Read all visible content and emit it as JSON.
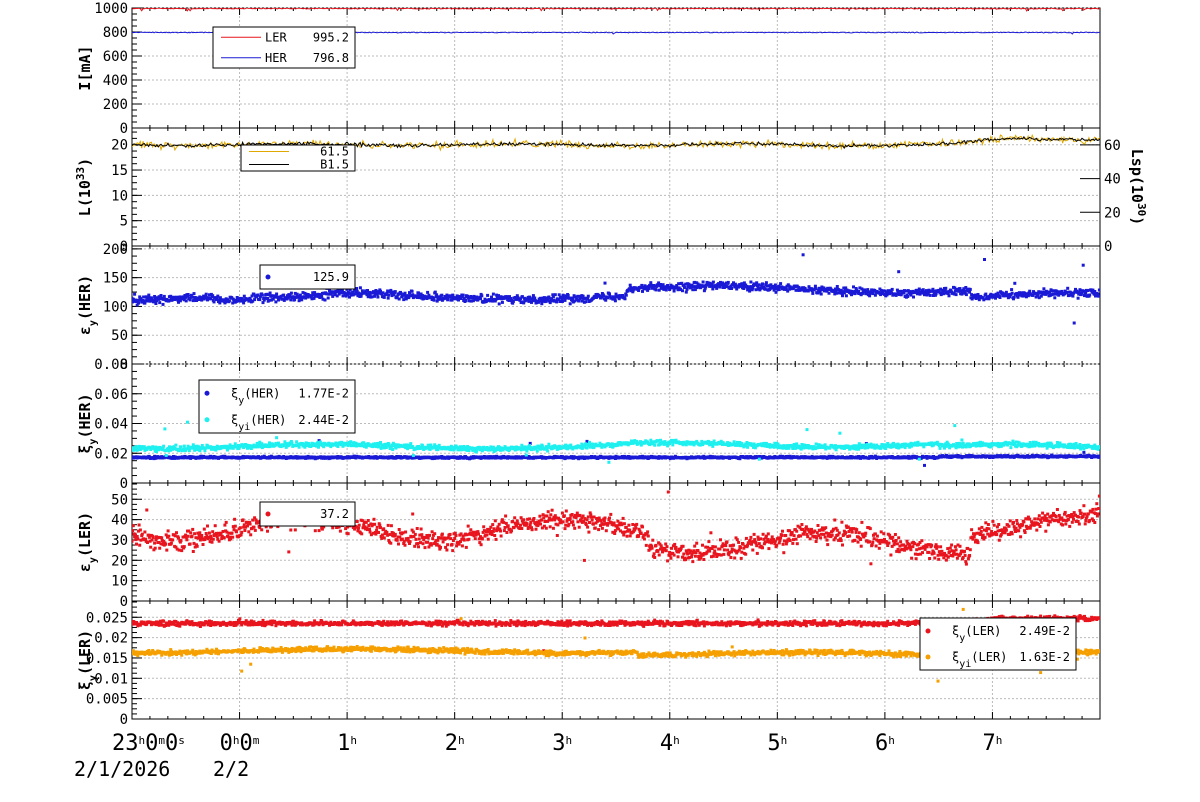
{
  "time_axis": {
    "tick_labels": [
      {
        "base": "23",
        "sup": "h",
        "base2": "0",
        "sup2": "m",
        "base3": "0",
        "sup3": "s",
        "x": -1
      },
      {
        "base": "0",
        "sup": "h",
        "base2": "0",
        "sup2": "m",
        "x": 0
      },
      {
        "base": "1",
        "sup": "h",
        "x": 1
      },
      {
        "base": "2",
        "sup": "h",
        "x": 2
      },
      {
        "base": "3",
        "sup": "h",
        "x": 3
      },
      {
        "base": "4",
        "sup": "h",
        "x": 4
      },
      {
        "base": "5",
        "sup": "h",
        "x": 5
      },
      {
        "base": "6",
        "sup": "h",
        "x": 6
      },
      {
        "base": "7",
        "sup": "h",
        "x": 7
      }
    ],
    "date_primary": "2/1/2026",
    "date_secondary": "2/2",
    "range_hours": [
      -1,
      8
    ]
  },
  "chart_data": [
    {
      "id": "current",
      "type": "line",
      "ylabel": "I[mA]",
      "ylim": [
        0,
        1000
      ],
      "yticks": [
        0,
        200,
        400,
        600,
        800,
        1000
      ],
      "grid": true,
      "legend": {
        "placement": "top-left"
      },
      "series": [
        {
          "name": "LER",
          "value_label": "995.2",
          "color": "#e8141e",
          "base": 995,
          "noise": 4
        },
        {
          "name": "HER",
          "value_label": "796.8",
          "color": "#1a1ad6",
          "base": 796,
          "noise": 3
        }
      ]
    },
    {
      "id": "luminosity",
      "type": "line",
      "ylabel_main": "L(10",
      "ylabel_sup": "33",
      "ylabel_end": ")",
      "ylim": [
        0,
        23.3
      ],
      "yticks": [
        0,
        5,
        10,
        15,
        20
      ],
      "y2label_main": "Lsp(10",
      "y2label_sup": "30",
      "y2label_end": ")",
      "y2lim": [
        0,
        70
      ],
      "y2ticks": [
        0,
        20,
        40,
        60
      ],
      "grid": true,
      "legend": {
        "placement": "top-left"
      },
      "series": [
        {
          "name": "",
          "value_label": "61.5",
          "color": "#e0a800",
          "base": 20,
          "noise": 0.6
        },
        {
          "name": "",
          "value_label": "B1.5",
          "color": "#000000",
          "base": 20,
          "noise": 0.3
        }
      ]
    },
    {
      "id": "emittance_her",
      "type": "scatter",
      "ylabel_main": "ε",
      "ylabel_sub": "y",
      "ylabel_end": "(HER)",
      "ylim": [
        0,
        205
      ],
      "yticks": [
        0,
        50,
        100,
        150,
        200
      ],
      "grid": true,
      "legend": {
        "placement": "top-left"
      },
      "series": [
        {
          "name": "",
          "value_label": "125.9",
          "color": "#1a1ad6",
          "base": 118,
          "noise": 6
        }
      ]
    },
    {
      "id": "tune_shift_her",
      "type": "scatter",
      "ylabel_main": "ξ",
      "ylabel_sub": "y",
      "ylabel_end": "(HER)",
      "ylim": [
        0,
        0.08
      ],
      "yticks": [
        0,
        0.02,
        0.04,
        0.06,
        0.08
      ],
      "ytick_labels": [
        "0",
        "0.02",
        "0.04",
        "0.06",
        "0.08"
      ],
      "grid": true,
      "legend": {
        "placement": "top-left"
      },
      "series": [
        {
          "name_main": "ξ",
          "name_sub": "y",
          "name_end": "(HER)",
          "value_label": "1.77E-2",
          "color": "#1a1ad6",
          "base": 0.0172,
          "noise": 0.0006
        },
        {
          "name_main": "ξ",
          "name_sub": "yi",
          "name_end": "(HER)",
          "value_label": "2.44E-2",
          "color": "#1ef0f0",
          "base": 0.0245,
          "noise": 0.0015
        }
      ]
    },
    {
      "id": "emittance_ler",
      "type": "scatter",
      "ylabel_main": "ε",
      "ylabel_sub": "y",
      "ylabel_end": "(LER)",
      "ylim": [
        0,
        58
      ],
      "yticks": [
        0,
        10,
        20,
        30,
        40,
        50
      ],
      "grid": true,
      "legend": {
        "placement": "top-left"
      },
      "series": [
        {
          "name": "",
          "value_label": "37.2",
          "color": "#e8141e",
          "base": 35,
          "noise": 4
        }
      ]
    },
    {
      "id": "tune_shift_ler",
      "type": "scatter",
      "ylabel_main": "ξ",
      "ylabel_sub": "y",
      "ylabel_end": "(LER)",
      "ylim": [
        0,
        0.029
      ],
      "yticks": [
        0,
        0.005,
        0.01,
        0.015,
        0.02,
        0.025
      ],
      "ytick_labels": [
        "0",
        "0.005",
        "0.01",
        "0.015",
        "0.02",
        "0.025"
      ],
      "grid": true,
      "legend": {
        "placement": "bottom-right"
      },
      "series": [
        {
          "name_main": "ξ",
          "name_sub": "y",
          "name_end": "(LER)",
          "value_label": "2.49E-2",
          "color": "#e8141e",
          "base": 0.0235,
          "noise": 0.0005
        },
        {
          "name_main": "ξ",
          "name_sub": "yi",
          "name_end": "(LER)",
          "value_label": "1.63E-2",
          "color": "#f5a000",
          "base": 0.0167,
          "noise": 0.0005
        }
      ]
    }
  ]
}
